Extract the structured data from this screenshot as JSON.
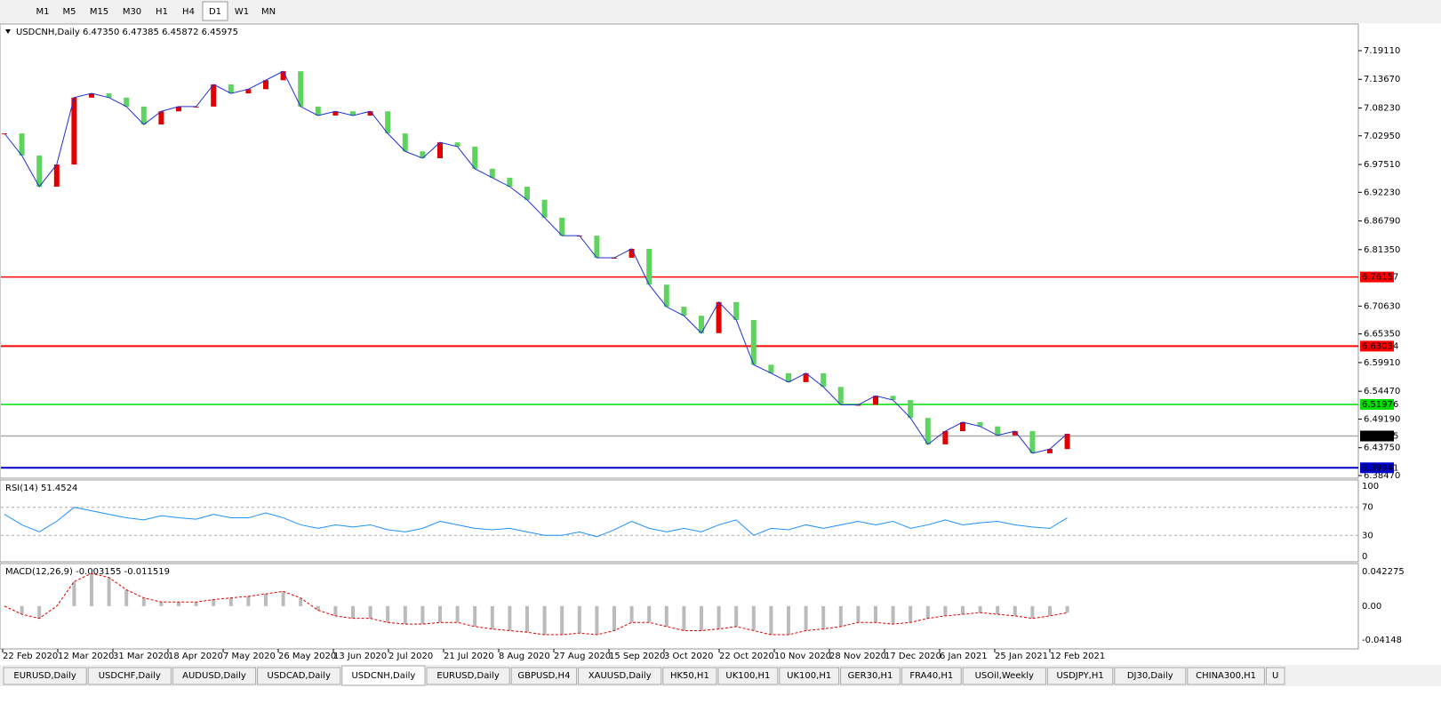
{
  "toolbar": {
    "timeframes": [
      "M1",
      "M5",
      "M15",
      "M30",
      "H1",
      "H4",
      "D1",
      "W1",
      "MN"
    ],
    "active": "D1"
  },
  "price_chart": {
    "header": "USDCNH,Daily  6.47350 6.47385 6.45872 6.45975",
    "axis_labels": [
      "7.19110",
      "7.13670",
      "7.08230",
      "7.02950",
      "6.97510",
      "6.92230",
      "6.86790",
      "6.81350",
      "6.70630",
      "6.65350",
      "6.59910",
      "6.54470",
      "6.49190",
      "6.43750",
      "6.38470"
    ],
    "levels": [
      {
        "label": "6.76157",
        "color": "#ff0000"
      },
      {
        "label": "6.63034",
        "color": "#ff0000"
      },
      {
        "label": "6.51976",
        "color": "#00dd00"
      },
      {
        "label": "6.45975",
        "color": "#000000"
      },
      {
        "label": "6.39941",
        "color": "#0000cc"
      }
    ],
    "closes": [
      7.034,
      6.992,
      6.933,
      6.975,
      7.102,
      7.11,
      7.102,
      7.085,
      7.051,
      7.076,
      7.085,
      7.085,
      7.127,
      7.11,
      7.118,
      7.135,
      7.152,
      7.085,
      7.068,
      7.076,
      7.068,
      7.076,
      7.034,
      7.0,
      6.987,
      7.017,
      7.009,
      6.967,
      6.95,
      6.933,
      6.908,
      6.874,
      6.84,
      6.84,
      6.798,
      6.798,
      6.815,
      6.747,
      6.705,
      6.688,
      6.655,
      6.714,
      6.68,
      6.595,
      6.579,
      6.562,
      6.579,
      6.553,
      6.519,
      6.519,
      6.536,
      6.528,
      6.494,
      6.444,
      6.469,
      6.486,
      6.478,
      6.461,
      6.469,
      6.427,
      6.435,
      6.464
    ]
  },
  "rsi": {
    "header": "RSI(14) 51.4524",
    "axis_labels": [
      "100",
      "70",
      "30",
      "0"
    ],
    "values": [
      60,
      45,
      35,
      50,
      70,
      65,
      60,
      55,
      52,
      58,
      55,
      53,
      60,
      55,
      55,
      62,
      55,
      45,
      40,
      45,
      42,
      45,
      38,
      35,
      40,
      50,
      45,
      40,
      38,
      40,
      35,
      30,
      30,
      35,
      28,
      38,
      50,
      40,
      35,
      40,
      35,
      45,
      52,
      30,
      40,
      38,
      45,
      40,
      45,
      50,
      45,
      50,
      40,
      45,
      52,
      45,
      48,
      50,
      45,
      42,
      40,
      55
    ]
  },
  "macd": {
    "header": "MACD(12,26,9) -0.003155 -0.011519",
    "axis_labels": [
      "0.042275",
      "0.00",
      "-0.04148"
    ],
    "values": [
      0.0,
      -0.01,
      -0.015,
      0.0,
      0.03,
      0.04,
      0.035,
      0.02,
      0.01,
      0.005,
      0.005,
      0.005,
      0.008,
      0.01,
      0.012,
      0.015,
      0.018,
      0.01,
      -0.005,
      -0.012,
      -0.015,
      -0.015,
      -0.02,
      -0.022,
      -0.022,
      -0.02,
      -0.02,
      -0.025,
      -0.028,
      -0.03,
      -0.032,
      -0.035,
      -0.035,
      -0.033,
      -0.035,
      -0.03,
      -0.02,
      -0.02,
      -0.025,
      -0.03,
      -0.03,
      -0.028,
      -0.025,
      -0.03,
      -0.035,
      -0.035,
      -0.03,
      -0.028,
      -0.025,
      -0.02,
      -0.02,
      -0.022,
      -0.02,
      -0.015,
      -0.012,
      -0.01,
      -0.008,
      -0.01,
      -0.012,
      -0.015,
      -0.012,
      -0.008
    ]
  },
  "dates": [
    "22 Feb 2020",
    "12 Mar 2020",
    "31 Mar 2020",
    "18 Apr 2020",
    "7 May 2020",
    "26 May 2020",
    "13 Jun 2020",
    "2 Jul 2020",
    "21 Jul 2020",
    "8 Aug 2020",
    "27 Aug 2020",
    "15 Sep 2020",
    "3 Oct 2020",
    "22 Oct 2020",
    "10 Nov 2020",
    "28 Nov 2020",
    "17 Dec 2020",
    "6 Jan 2021",
    "25 Jan 2021",
    "12 Feb 2021"
  ],
  "tabs": {
    "items": [
      "EURUSD,Daily",
      "USDCHF,Daily",
      "AUDUSD,Daily",
      "USDCAD,Daily",
      "USDCNH,Daily",
      "EURUSD,Daily",
      "GBPUSD,H4",
      "XAUUSD,Daily",
      "HK50,H1",
      "UK100,H1",
      "UK100,H1",
      "GER30,H1",
      "FRA40,H1",
      "USOil,Weekly",
      "USDJPY,H1",
      "DJ30,Daily",
      "CHINA300,H1",
      "U"
    ],
    "active": 4
  }
}
